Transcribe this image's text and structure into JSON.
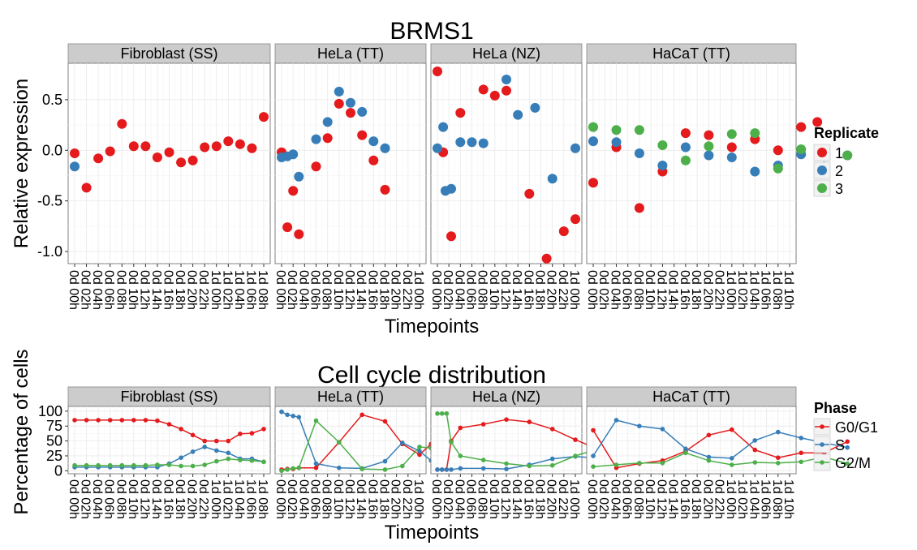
{
  "chart_data": [
    {
      "type": "scatter",
      "title": "BRMS1",
      "xlabel": "Timepoints",
      "ylabel": "Relative expression",
      "ylim": [
        -1.12,
        0.86
      ],
      "yticks": [
        0.5,
        0.0,
        -0.5,
        -1.0
      ],
      "ytick_labels": [
        "0.5",
        "0.0",
        "-0.5",
        "-1.0"
      ],
      "grid": true,
      "legend": {
        "title": "Replicate",
        "position": "right",
        "entries": [
          "1",
          "2",
          "3"
        ]
      },
      "series_colors": {
        "1": "#e41a1c",
        "2": "#377eb8",
        "3": "#4daf4a"
      },
      "panels": [
        {
          "label": "Fibroblast (SS)",
          "categories": [
            "0d 00h",
            "0d 02h",
            "0d 04h",
            "0d 06h",
            "0d 08h",
            "0d 10h",
            "0d 12h",
            "0d 14h",
            "0d 16h",
            "0d 18h",
            "0d 20h",
            "0d 22h",
            "1d 00h",
            "1d 02h",
            "1d 04h",
            "1d 06h",
            "1d 08h"
          ],
          "series": [
            {
              "name": "1",
              "values": [
                -0.03,
                -0.37,
                -0.08,
                -0.01,
                0.26,
                0.04,
                0.04,
                -0.07,
                -0.02,
                -0.12,
                -0.1,
                0.03,
                0.04,
                0.09,
                0.06,
                0.02,
                0.33
              ]
            },
            {
              "name": "2",
              "values": [
                -0.16,
                null,
                null,
                null,
                null,
                null,
                null,
                null,
                null,
                null,
                null,
                null,
                null,
                null,
                null,
                null,
                null
              ]
            }
          ]
        },
        {
          "label": "HeLa (TT)",
          "categories": [
            "0d 00h",
            "0d 02h",
            "0d 04h",
            "0d 06h",
            "0d 08h",
            "0d 10h",
            "0d 12h",
            "0d 14h",
            "0d 16h",
            "0d 18h",
            "0d 20h",
            "0d 22h",
            "1d 00h"
          ],
          "series": [
            {
              "name": "1",
              "values": [
                -0.02,
                -0.76,
                -0.4,
                -0.83,
                -0.16,
                0.12,
                0.46,
                0.37,
                0.15,
                -0.1,
                -0.39
              ]
            },
            {
              "name": "2",
              "values": [
                -0.07,
                -0.06,
                -0.04,
                -0.26,
                0.11,
                0.28,
                0.58,
                0.47,
                0.38,
                0.09,
                0.02
              ]
            }
          ],
          "x_index": [
            0,
            0.5,
            1,
            1.5,
            3,
            4,
            5,
            6,
            7,
            8,
            9
          ]
        },
        {
          "label": "HeLa (NZ)",
          "categories": [
            "0d 00h",
            "0d 02h",
            "0d 04h",
            "0d 06h",
            "0d 08h",
            "0d 10h",
            "0d 12h",
            "0d 14h",
            "0d 16h",
            "0d 18h",
            "0d 20h",
            "0d 22h",
            "1d 00h"
          ],
          "series": [
            {
              "name": "1",
              "values": [
                0.78,
                -0.02,
                -0.85,
                0.37,
                0.6,
                0.54,
                0.59,
                -0.43,
                -1.07,
                -0.8,
                -0.68
              ]
            },
            {
              "name": "2",
              "values": [
                0.02,
                0.23,
                -0.4,
                -0.38,
                0.08,
                0.08,
                0.07,
                0.7,
                0.35,
                0.42,
                -0.28,
                0.02
              ]
            }
          ],
          "x_index_1": [
            0,
            0.5,
            1.2,
            2,
            4,
            5,
            6,
            8,
            9.5,
            11,
            12
          ],
          "x_index_2": [
            0,
            0.5,
            0.7,
            1.2,
            2,
            3,
            4,
            6,
            7,
            8.5,
            10,
            12
          ]
        },
        {
          "label": "HaCaT (TT)",
          "categories": [
            "0d 00h",
            "0d 02h",
            "0d 04h",
            "0d 06h",
            "0d 08h",
            "0d 10h",
            "0d 12h",
            "0d 14h",
            "0d 16h",
            "0d 18h",
            "0d 20h",
            "0d 22h",
            "1d 00h",
            "1d 02h",
            "1d 04h",
            "1d 06h",
            "1d 08h",
            "1d 10h"
          ],
          "series": [
            {
              "name": "1",
              "values": [
                -0.32,
                0.03,
                -0.57,
                -0.21,
                0.17,
                0.15,
                0.03,
                0.11,
                0.0,
                0.23,
                0.28
              ]
            },
            {
              "name": "2",
              "values": [
                0.09,
                0.08,
                -0.03,
                -0.15,
                0.03,
                -0.05,
                -0.07,
                -0.21,
                -0.15,
                -0.04,
                -0.16,
                -0.05
              ]
            },
            {
              "name": "3",
              "values": [
                0.23,
                0.2,
                0.2,
                0.05,
                -0.1,
                0.04,
                0.16,
                0.17,
                -0.18,
                0.01,
                -0.05
              ]
            }
          ],
          "x_index_1": [
            0,
            2,
            4,
            6,
            8,
            10,
            12,
            14,
            16,
            18,
            19.4
          ],
          "x_index_2": [
            0,
            2,
            4,
            6,
            8,
            10,
            12,
            14,
            16,
            18,
            20,
            22
          ],
          "x_index_3": [
            0,
            2,
            4,
            6,
            8,
            10,
            12,
            14,
            16,
            18,
            22
          ]
        }
      ]
    },
    {
      "type": "line",
      "title": "Cell cycle distribution",
      "xlabel": "Timepoints",
      "ylabel": "Percentage of cells",
      "ylim": [
        -5,
        108
      ],
      "yticks": [
        100,
        75,
        50,
        25,
        0
      ],
      "ytick_labels": [
        "100",
        "75",
        "50",
        "25",
        "0"
      ],
      "grid": true,
      "legend": {
        "title": "Phase",
        "position": "right",
        "entries": [
          "G0/G1",
          "S",
          "G2/M"
        ]
      },
      "series_colors": {
        "G0/G1": "#e41a1c",
        "S": "#377eb8",
        "G2/M": "#4daf4a"
      },
      "panels": [
        {
          "label": "Fibroblast (SS)",
          "categories": [
            "0d 00h",
            "0d 02h",
            "0d 04h",
            "0d 06h",
            "0d 08h",
            "0d 10h",
            "0d 12h",
            "0d 14h",
            "0d 16h",
            "0d 18h",
            "0d 20h",
            "0d 22h",
            "1d 00h",
            "1d 02h",
            "1d 04h",
            "1d 06h",
            "1d 08h"
          ],
          "series": [
            {
              "name": "G0/G1",
              "values": [
                85,
                85,
                85,
                85,
                85,
                85,
                85,
                84,
                78,
                70,
                60,
                50,
                50,
                50,
                62,
                63,
                70
              ]
            },
            {
              "name": "S",
              "values": [
                6,
                6,
                6,
                6,
                6,
                6,
                6,
                6,
                12,
                22,
                32,
                40,
                34,
                30,
                20,
                20,
                15
              ]
            },
            {
              "name": "G2/M",
              "values": [
                9,
                9,
                9,
                9,
                9,
                9,
                9,
                10,
                10,
                8,
                8,
                10,
                16,
                20,
                18,
                17,
                15
              ]
            }
          ]
        },
        {
          "label": "HeLa (TT)",
          "categories": [
            "0d 00h",
            "0d 02h",
            "0d 04h",
            "0d 06h",
            "0d 08h",
            "0d 10h",
            "0d 12h",
            "0d 14h",
            "0d 16h",
            "0d 18h",
            "0d 20h",
            "0d 22h",
            "1d 00h"
          ],
          "x_index": [
            0,
            0.5,
            1,
            1.5,
            3,
            5,
            6,
            7,
            8,
            9,
            10,
            11,
            12
          ],
          "series": [
            {
              "name": "G0/G1",
              "values": [
                2,
                3,
                3,
                5,
                5,
                48,
                94,
                83,
                45,
                27,
                45
              ]
            },
            {
              "name": "S",
              "values": [
                99,
                94,
                92,
                90,
                12,
                5,
                4,
                16,
                47,
                33,
                17
              ]
            },
            {
              "name": "G2/M",
              "values": [
                0,
                2,
                4,
                5,
                84,
                48,
                3,
                2,
                8,
                40,
                38
              ]
            }
          ],
          "x_index_series": [
            0,
            0.5,
            1,
            1.5,
            3,
            5,
            7,
            9,
            10.5,
            12,
            13
          ]
        },
        {
          "label": "HeLa (NZ)",
          "categories": [
            "0d 00h",
            "0d 02h",
            "0d 04h",
            "0d 06h",
            "0d 08h",
            "0d 10h",
            "0d 12h",
            "0d 14h",
            "0d 16h",
            "0d 18h",
            "0d 20h",
            "0d 22h",
            "1d 00h"
          ],
          "series": [
            {
              "name": "G0/G1",
              "values": [
                2,
                2,
                2,
                50,
                72,
                78,
                86,
                82,
                70,
                52,
                40,
                48
              ]
            },
            {
              "name": "S",
              "values": [
                2,
                2,
                2,
                2,
                4,
                4,
                3,
                10,
                20,
                24,
                22,
                14
              ]
            },
            {
              "name": "G2/M",
              "values": [
                96,
                96,
                96,
                48,
                25,
                18,
                12,
                8,
                9,
                25,
                34,
                37
              ]
            }
          ],
          "x_index_series": [
            0,
            0.4,
            0.8,
            1.2,
            2,
            4,
            6,
            8,
            10,
            12,
            13.5,
            15.5
          ]
        },
        {
          "label": "HaCaT (TT)",
          "categories": [
            "0d 00h",
            "0d 02h",
            "0d 04h",
            "0d 06h",
            "0d 08h",
            "0d 10h",
            "0d 12h",
            "0d 14h",
            "0d 16h",
            "0d 18h",
            "0d 20h",
            "0d 22h",
            "1d 00h",
            "1d 02h",
            "1d 04h",
            "1d 06h",
            "1d 08h",
            "1d 10h"
          ],
          "series": [
            {
              "name": "G0/G1",
              "values": [
                68,
                5,
                12,
                17,
                33,
                60,
                69,
                35,
                22,
                30,
                30,
                49
              ]
            },
            {
              "name": "S",
              "values": [
                25,
                85,
                75,
                70,
                37,
                23,
                21,
                51,
                65,
                55,
                47,
                39
              ]
            },
            {
              "name": "G2/M",
              "values": [
                7,
                10,
                13,
                13,
                30,
                17,
                10,
                14,
                13,
                15,
                23,
                12
              ]
            }
          ],
          "x_index_series": [
            0,
            2,
            4,
            6,
            8,
            10,
            12,
            14,
            16,
            18,
            20,
            22
          ]
        }
      ]
    }
  ]
}
